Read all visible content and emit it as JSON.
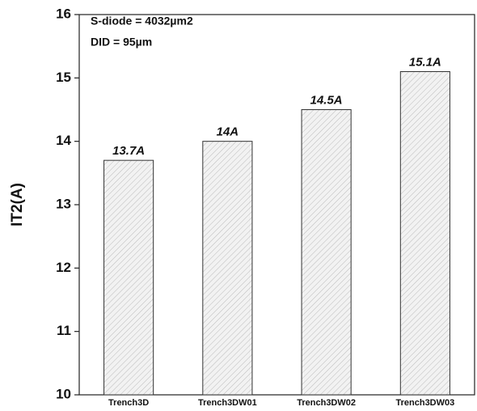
{
  "chart_data": {
    "type": "bar",
    "y_label": "IT2(A)",
    "annotations": [
      "S-diode = 4032µm2",
      "DID = 95µm"
    ],
    "categories": [
      "Trench3D",
      "Trench3DW01",
      "Trench3DW02",
      "Trench3DW03"
    ],
    "values": [
      13.7,
      14,
      14.5,
      15.1
    ],
    "value_labels": [
      "13.7A",
      "14A",
      "14.5A",
      "15.1A"
    ],
    "color": "#f2f2f2",
    "ylim": [
      10,
      16
    ],
    "yticks": [
      10,
      11,
      12,
      13,
      14,
      15,
      16
    ],
    "grid": false
  }
}
